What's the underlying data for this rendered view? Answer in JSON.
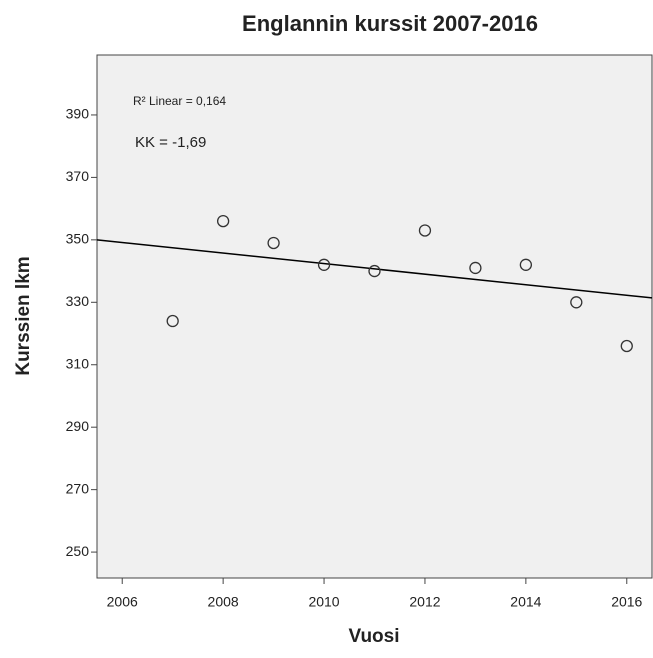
{
  "chart_data": {
    "type": "scatter",
    "title": "Englannin kurssit 2007-2016",
    "x_label": "Vuosi",
    "y_label": "Kurssien lkm",
    "annotations": [
      "R² Linear = 0,164",
      "KK = -1,69"
    ],
    "x": [
      2007,
      2008,
      2009,
      2010,
      2011,
      2012,
      2013,
      2014,
      2015,
      2016
    ],
    "values": [
      324,
      356,
      349,
      342,
      340,
      353,
      341,
      342,
      330,
      316
    ],
    "color": "#333333",
    "fit_line": {
      "x": [
        2005.5,
        2016.5
      ],
      "values": [
        350,
        331.4
      ],
      "color": "#000000"
    },
    "xlim": [
      2005.5,
      2016.5
    ],
    "xticks": [
      2006,
      2008,
      2010,
      2012,
      2014,
      2016
    ],
    "ylim": [
      241.7,
      409.2
    ],
    "yticks": [
      250,
      270,
      290,
      310,
      330,
      350,
      370,
      390
    ],
    "grid": false
  }
}
